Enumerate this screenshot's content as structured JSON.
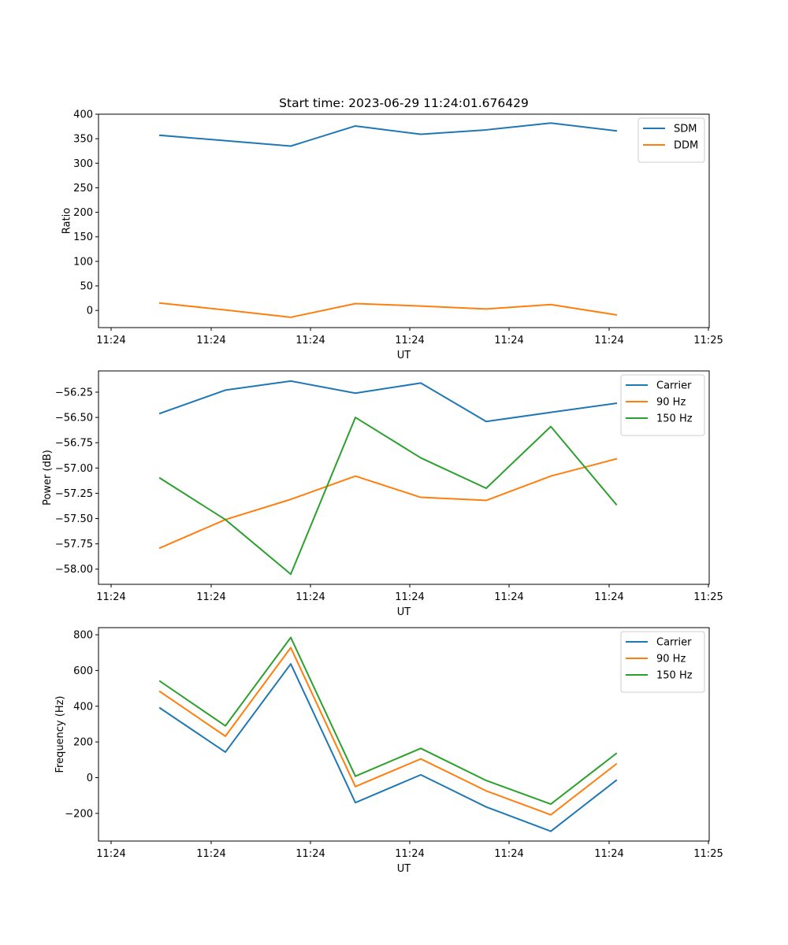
{
  "chart_data": [
    {
      "type": "line",
      "title": "Start time: 2023-06-29 11:24:01.676429",
      "xlabel": "UT",
      "ylabel": "Ratio",
      "x_ticks": [
        "11:24",
        "11:24",
        "11:24",
        "11:24",
        "11:24",
        "11:24",
        "11:24",
        "11:25"
      ],
      "ylim": [
        -35,
        400
      ],
      "y_ticks": [
        0,
        50,
        100,
        150,
        200,
        250,
        300,
        350,
        400
      ],
      "grid": false,
      "legend": "upper right",
      "series": [
        {
          "name": "SDM",
          "color": "#1f77b4",
          "values": [
            357,
            346,
            335,
            376,
            359,
            368,
            382,
            366
          ]
        },
        {
          "name": "DDM",
          "color": "#ff7f0e",
          "values": [
            15,
            1,
            -14,
            14,
            9,
            3,
            12,
            -9
          ]
        }
      ]
    },
    {
      "type": "line",
      "title": "",
      "xlabel": "UT",
      "ylabel": "Power (dB)",
      "x_ticks": [
        "11:24",
        "11:24",
        "11:24",
        "11:24",
        "11:24",
        "11:24",
        "11:24",
        "11:25"
      ],
      "ylim": [
        -58.15,
        -56.04
      ],
      "y_ticks": [
        -58.0,
        -57.75,
        -57.5,
        -57.25,
        -57.0,
        -56.75,
        -56.5,
        -56.25
      ],
      "y_tick_labels": [
        "−58.00",
        "−57.75",
        "−57.50",
        "−57.25",
        "−57.00",
        "−56.75",
        "−56.50",
        "−56.25"
      ],
      "grid": false,
      "legend": "upper right",
      "series": [
        {
          "name": "Carrier",
          "color": "#1f77b4",
          "values": [
            -56.46,
            -56.23,
            -56.14,
            -56.26,
            -56.16,
            -56.54,
            -56.45,
            -56.36
          ]
        },
        {
          "name": "90 Hz",
          "color": "#ff7f0e",
          "values": [
            -57.79,
            -57.51,
            -57.31,
            -57.08,
            -57.29,
            -57.32,
            -57.08,
            -56.91
          ]
        },
        {
          "name": "150 Hz",
          "color": "#2ca02c",
          "values": [
            -57.1,
            -57.51,
            -58.05,
            -56.5,
            -56.9,
            -57.2,
            -56.59,
            -57.36
          ]
        }
      ]
    },
    {
      "type": "line",
      "title": "",
      "xlabel": "UT",
      "ylabel": "Frequency (Hz)",
      "x_ticks": [
        "11:24",
        "11:24",
        "11:24",
        "11:24",
        "11:24",
        "11:24",
        "11:24",
        "11:25"
      ],
      "ylim": [
        -355,
        840
      ],
      "y_ticks": [
        -200,
        0,
        200,
        400,
        600,
        800
      ],
      "y_tick_labels": [
        "−200",
        "0",
        "200",
        "400",
        "600",
        "800"
      ],
      "grid": false,
      "legend": "upper right",
      "series": [
        {
          "name": "Carrier",
          "color": "#1f77b4",
          "values": [
            390,
            143,
            637,
            -140,
            16,
            -164,
            -300,
            -15
          ]
        },
        {
          "name": "90 Hz",
          "color": "#ff7f0e",
          "values": [
            482,
            232,
            728,
            -50,
            105,
            -74,
            -208,
            76
          ]
        },
        {
          "name": "150 Hz",
          "color": "#2ca02c",
          "values": [
            540,
            290,
            785,
            8,
            164,
            -16,
            -148,
            135
          ]
        }
      ]
    }
  ]
}
